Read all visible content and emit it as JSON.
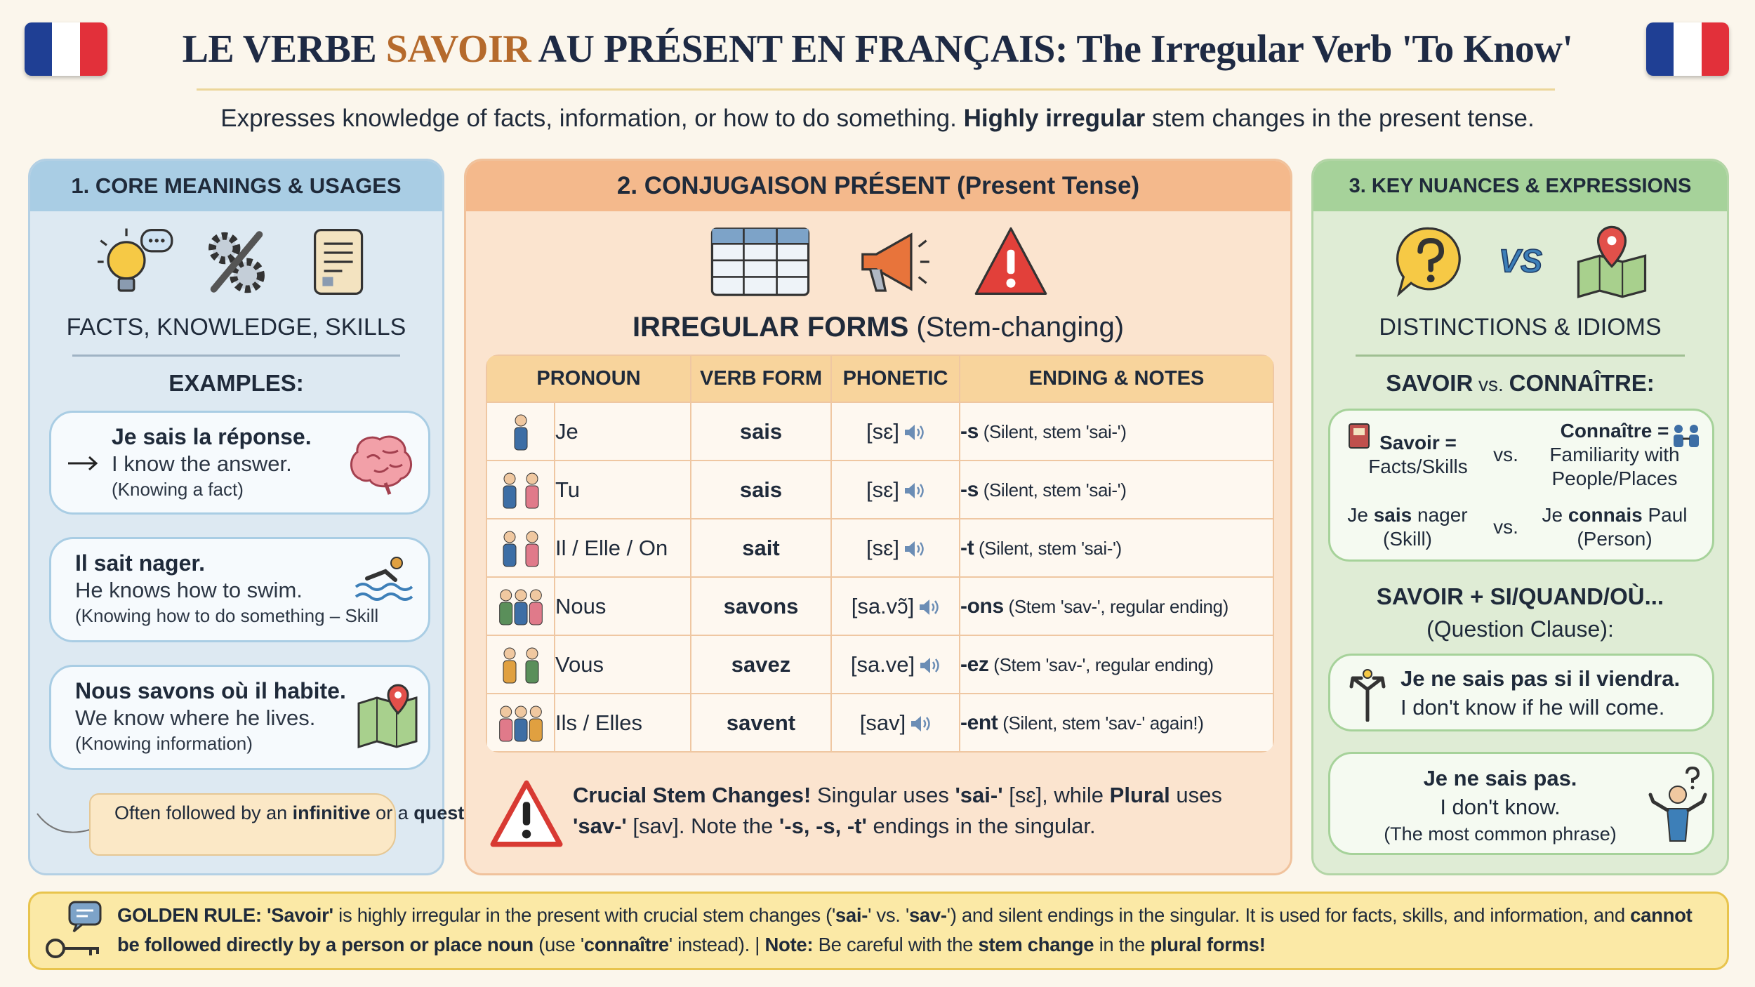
{
  "header": {
    "title": [
      "LE VERBE ",
      "SAVOIR",
      " AU PRÉSENT EN FRANÇAIS: The Irregular Verb 'To Know'"
    ],
    "subtitle": [
      "Expresses knowledge of facts, information, or how to do something. ",
      "Highly irregular",
      " stem changes in the present tense."
    ]
  },
  "core_meanings": {
    "title": "1. CORE MEANINGS & USAGES",
    "caption": "FACTS, KNOWLEDGE, SKILLS",
    "examples_heading": "EXAMPLES:",
    "examples": [
      {
        "french": "Je sais la réponse.",
        "english": "I know the answer.",
        "note": "(Knowing a fact)"
      },
      {
        "french": "Il sait nager.",
        "english": "He knows how to swim.",
        "note": "(Knowing how to do something – Skill"
      },
      {
        "french": "Nous savons où il habite.",
        "english": "We know where he lives.",
        "note": "(Knowing information)"
      }
    ],
    "tip": [
      "Often followed by an ",
      "infinitive",
      " or a ",
      "question word clause",
      "."
    ]
  },
  "conjugation": {
    "title": "2. CONJUGAISON PRÉSENT (Present Tense)",
    "heading": [
      "IRREGULAR FORMS",
      " (Stem-changing)"
    ],
    "columns": [
      "PRONOUN",
      "VERB FORM",
      "PHONETIC",
      "ENDING & NOTES"
    ],
    "rows": [
      [
        "Je",
        "sais",
        "[sɛ]",
        "-s",
        " (Silent, stem 'sai-')"
      ],
      [
        "Tu",
        "sais",
        "[sɛ]",
        "-s",
        " (Silent, stem 'sai-')"
      ],
      [
        "Il / Elle / On",
        "sait",
        "[sɛ]",
        "-t",
        " (Silent, stem 'sai-')"
      ],
      [
        "Nous",
        "savons",
        "[sa.vɔ̃]",
        "-ons",
        " (Stem 'sav-', regular ending)"
      ],
      [
        "Vous",
        "savez",
        "[sa.ve]",
        "-ez",
        " (Stem 'sav-', regular ending)"
      ],
      [
        "Ils / Elles",
        "savent",
        "[sav]",
        "-ent",
        " (Silent, stem 'sav-' again!)"
      ]
    ],
    "warning": [
      "Crucial Stem Changes!",
      " Singular uses ",
      "'sai-'",
      " [sɛ], while ",
      "Plural",
      " uses ",
      "'sav-'",
      " [sav]. Note the ",
      "'-s, -s, -t'",
      " endings in the singular."
    ]
  },
  "nuances": {
    "title": "3. KEY NUANCES & EXPRESSIONS",
    "icon_text": "VS",
    "caption": "DISTINCTIONS & IDIOMS",
    "heading": [
      "SAVOIR",
      " vs. ",
      "CONNAÎTRE:"
    ],
    "comparison": [
      {
        "left": [
          "Savoir =",
          "Facts/Skills"
        ],
        "vs": "vs.",
        "right": [
          "Connaître =",
          "Familiarity with People/Places"
        ]
      },
      {
        "left": [
          "Je ",
          "sais",
          " nager",
          "(Skill)"
        ],
        "vs": "vs.",
        "right": [
          "Je ",
          "connais",
          " Paul",
          "(Person)"
        ]
      }
    ],
    "clause_heading": "SAVOIR + SI/QUAND/OÙ...",
    "clause_subheading": "(Question Clause):",
    "clause_example": {
      "french": "Je ne sais pas si il viendra.",
      "english": "I don't know if he will come."
    },
    "common_phrase": {
      "french": "Je ne sais pas.",
      "english": "I don't know.",
      "note": "(The most common phrase)"
    }
  },
  "golden_rule": [
    "GOLDEN RULE: 'Savoir'",
    " is highly irregular in the present with crucial stem changes ('",
    "sai-",
    "' vs. '",
    "sav-",
    "') and silent endings in the singular. It is used for facts, skills, and information, and ",
    "cannot be followed directly by a person or place noun",
    " (use '",
    "connaître",
    "' instead). | ",
    "Note:",
    " Be careful with the ",
    "stem change",
    " in the ",
    "plural forms!"
  ]
}
